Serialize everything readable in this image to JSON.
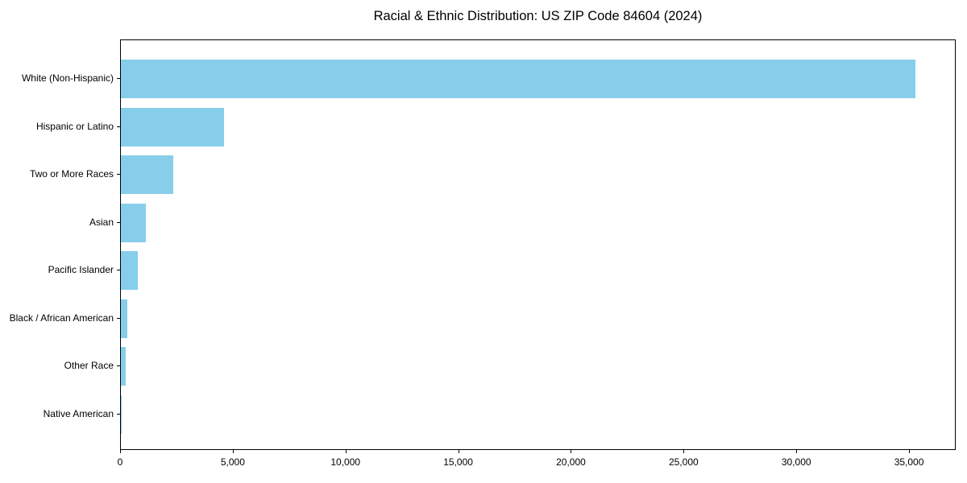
{
  "chart_data": {
    "type": "bar",
    "orientation": "horizontal",
    "title": "Racial & Ethnic Distribution: US ZIP Code 84604 (2024)",
    "categories": [
      "White (Non-Hispanic)",
      "Hispanic or Latino",
      "Two or More Races",
      "Asian",
      "Pacific Islander",
      "Black / African American",
      "Other Race",
      "Native American"
    ],
    "values": [
      35250,
      4570,
      2325,
      1120,
      740,
      300,
      215,
      30
    ],
    "xlabel": "",
    "ylabel": "",
    "xlim": [
      0,
      37000
    ],
    "x_ticks": [
      0,
      5000,
      10000,
      15000,
      20000,
      25000,
      30000,
      35000
    ],
    "x_tick_labels": [
      "0",
      "5,000",
      "10,000",
      "15,000",
      "20,000",
      "25,000",
      "30,000",
      "35,000"
    ],
    "bar_color": "#87CEEB",
    "grid": false,
    "legend": "none",
    "sort_order": "descending"
  }
}
